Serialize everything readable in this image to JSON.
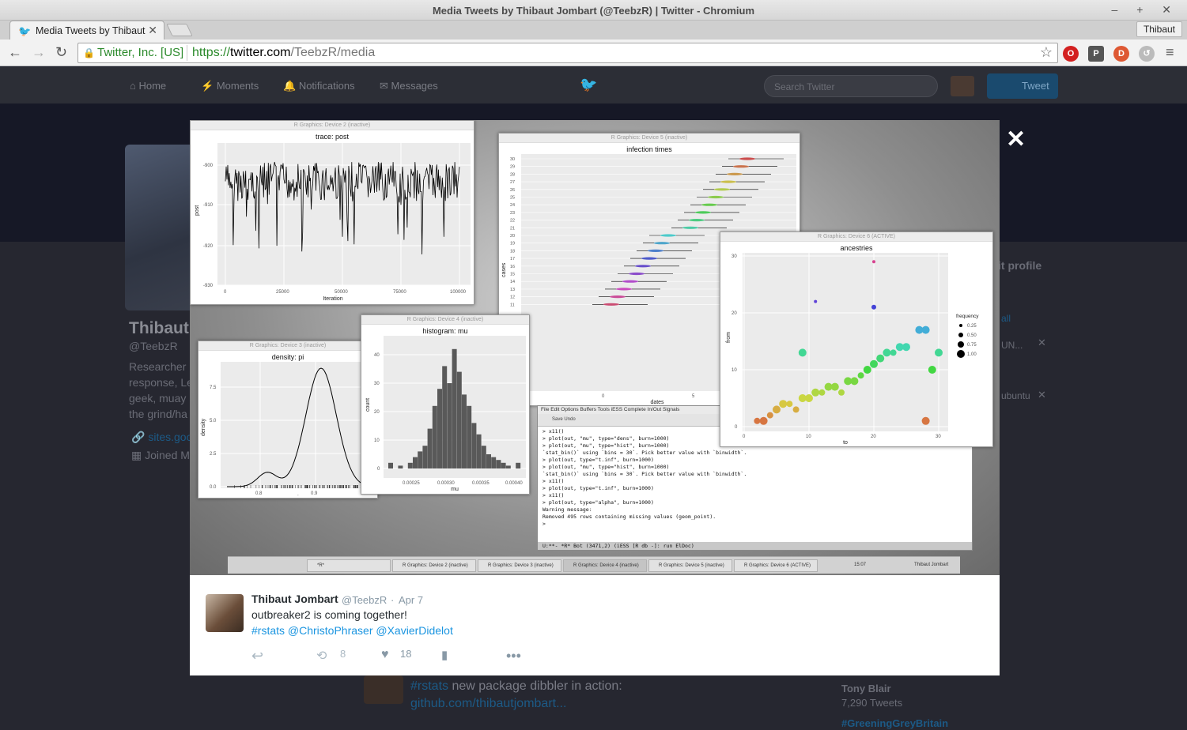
{
  "window": {
    "title": "Media Tweets by Thibaut Jombart (@TeebzR) | Twitter - Chromium",
    "profile_name": "Thibaut"
  },
  "tab": {
    "label": "Media Tweets by Thibaut Jombart (@TeebzR)"
  },
  "omnibox": {
    "security_label": "Twitter, Inc. [US]",
    "url_scheme": "https://",
    "url_host": "twitter.com",
    "url_path": "/TeebzR/media"
  },
  "twitter_nav": {
    "home": "Home",
    "moments": "Moments",
    "notifications": "Notifications",
    "messages": "Messages",
    "search_placeholder": "Search Twitter",
    "tweet_button": "Tweet"
  },
  "background_profile": {
    "name": "Thibaut",
    "handle": "@TeebzR",
    "bio_lines": [
      "Researcher",
      "response, Le",
      "geek, muay",
      "the grind/ha"
    ],
    "site": "sites.goo",
    "joined": "Joined M",
    "edit_profile": "it profile",
    "suggest_1": "UN...",
    "suggest_2": "ubuntu",
    "suggest_more": "all",
    "who_name": "Tony Blair",
    "who_sub": "7,290 Tweets",
    "trend": "#GreeningGreyBritain"
  },
  "background_tweet": {
    "hashtag": "#rstats",
    "text": " new package dibbler in action:",
    "link": "github.com/thibautjombart..."
  },
  "media": {
    "trace": {
      "window_title": "R Graphics: Device 2 (inactive)",
      "title": "trace: post",
      "xlabel": "Iteration",
      "ylabel": "post",
      "xticks": [
        "0",
        "25000",
        "50000",
        "75000",
        "100000"
      ],
      "yticks": [
        "-900",
        "-910",
        "-920",
        "-930"
      ]
    },
    "density": {
      "window_title": "R Graphics: Device 3 (inactive)",
      "title": "density: pi",
      "xlabel": "pi",
      "ylabel": "density",
      "xticks": [
        "0.8",
        "0.9"
      ],
      "yticks": [
        "7.5",
        "5.0",
        "2.5",
        "0.0"
      ]
    },
    "histogram": {
      "window_title": "R Graphics: Device 4 (inactive)",
      "title": "histogram: mu",
      "xlabel": "mu",
      "ylabel": "count",
      "xticks": [
        "0.00025",
        "0.00030",
        "0.00035",
        "0.00040"
      ],
      "yticks": [
        "40",
        "30",
        "20",
        "10",
        "0"
      ]
    },
    "infection": {
      "window_title": "R Graphics: Device 5 (inactive)",
      "title": "infection times",
      "xlabel": "dates",
      "ylabel": "cases",
      "xticks": [
        "0",
        "5"
      ],
      "yticks": [
        "30",
        "29",
        "28",
        "27",
        "26",
        "25",
        "24",
        "23",
        "22",
        "21",
        "20",
        "19",
        "18",
        "17",
        "16",
        "15",
        "14",
        "13",
        "12",
        "11"
      ]
    },
    "ancestries": {
      "window_title": "R Graphics: Device 6 (ACTIVE)",
      "title": "ancestries",
      "xlabel": "to",
      "ylabel": "from",
      "xticks": [
        "0",
        "10",
        "20",
        "30"
      ],
      "yticks": [
        "30",
        "20",
        "10",
        "0"
      ],
      "legend_title": "frequency",
      "legend_items": [
        "0.25",
        "0.50",
        "0.75",
        "1.00"
      ]
    },
    "emacs": {
      "menu": "File  Edit  Options  Buffers  Tools  iESS  Complete  In/Out  Signals",
      "toolbar": "Save    Undo",
      "lines": [
        "> x11()",
        "> plot(out, \"mu\", type=\"dens\", burn=1000)",
        "> plot(out, \"mu\", type=\"hist\", burn=1000)",
        "`stat_bin()` using `bins = 30`. Pick better value with `binwidth`.",
        "> plot(out, type=\"t.inf\", burn=1000)",
        "> plot(out, \"mu\", type=\"hist\", burn=1000)",
        "`stat_bin()` using `bins = 30`. Pick better value with `binwidth`.",
        "> x11()",
        "> plot(out, type=\"t.inf\", burn=1000)",
        "> x11()",
        "> plot(out, type=\"alpha\", burn=1000)",
        "Warning message:",
        "Removed 495 rows containing missing values (geom_point).",
        "> "
      ],
      "modeline": "U:**-  *R*      Bot (3471,2)    (iESS [R db -]: run ElDoc)"
    },
    "taskbar": {
      "items": [
        "*R*",
        "R Graphics: Device 2 (inactive)",
        "R Graphics: Device 3 (inactive)",
        "R Graphics: Device 4 (inactive)",
        "R Graphics: Device 5 (inactive)",
        "R Graphics: Device 6 (ACTIVE)"
      ],
      "clock": "15:07",
      "user": "Thibaut Jombart"
    }
  },
  "tweet": {
    "name": "Thibaut Jombart",
    "handle": "@TeebzR",
    "separator": "·",
    "time": "Apr 7",
    "text": "outbreaker2 is coming together!",
    "tags": "#rstats @ChristoPhraser @XavierDidelot",
    "retweets": "8",
    "likes": "18"
  },
  "colors": {
    "twitter_blue": "#1da1f2",
    "link_blue": "#1b95e0",
    "secure_green": "#2b8a2b"
  }
}
